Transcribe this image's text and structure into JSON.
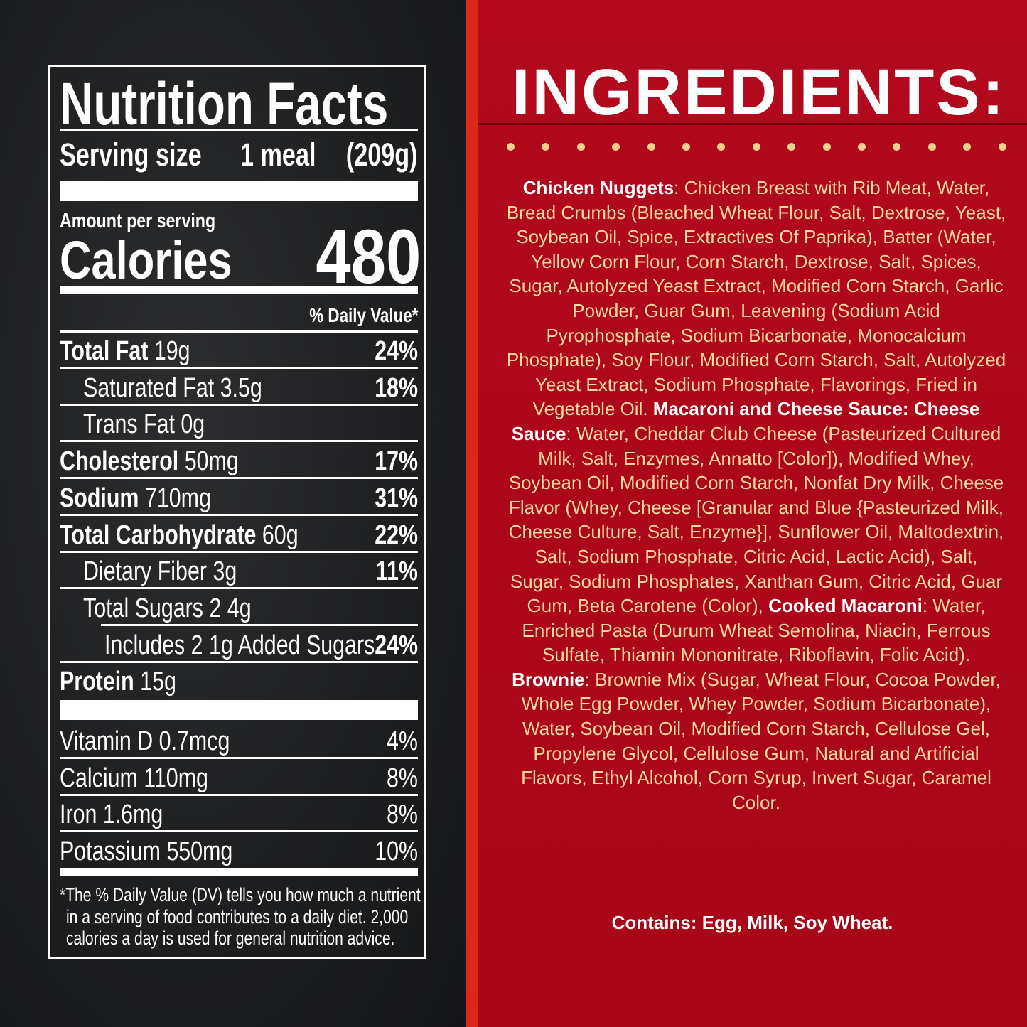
{
  "nutrition": {
    "title": "Nutrition Facts",
    "serving_size_label": "Serving size",
    "serving_size_value": "1 meal",
    "serving_size_grams": "(209g)",
    "amount_per_serving": "Amount per serving",
    "calories_label": "Calories",
    "calories_value": "480",
    "daily_value_header": "% Daily Value*",
    "rows": [
      {
        "label": "Total Fat",
        "amount": "19g",
        "dv": "24%",
        "bold": true,
        "indent": 0
      },
      {
        "label": "Saturated Fat",
        "amount": "3.5g",
        "dv": "18%",
        "bold": false,
        "indent": 1
      },
      {
        "label": "Trans Fat",
        "amount": "0g",
        "dv": "",
        "bold": false,
        "indent": 1
      },
      {
        "label": "Cholesterol",
        "amount": "50mg",
        "dv": "17%",
        "bold": true,
        "indent": 0
      },
      {
        "label": "Sodium",
        "amount": "710mg",
        "dv": "31%",
        "bold": true,
        "indent": 0
      },
      {
        "label": "Total Carbohydrate",
        "amount": "60g",
        "dv": "22%",
        "bold": true,
        "indent": 0
      },
      {
        "label": "Dietary Fiber",
        "amount": "3g",
        "dv": "11%",
        "bold": false,
        "indent": 1
      },
      {
        "label": "Total Sugars",
        "amount": "2 4g",
        "dv": "",
        "bold": false,
        "indent": 1
      },
      {
        "label": "Includes 2 1g Added Sugars",
        "amount": "",
        "dv": "24%",
        "bold": false,
        "indent": 2
      },
      {
        "label": "Protein",
        "amount": "15g",
        "dv": "",
        "bold": true,
        "indent": 0
      }
    ],
    "vitamins": [
      {
        "label": "Vitamin D 0.7mcg",
        "dv": "4%"
      },
      {
        "label": "Calcium 110mg",
        "dv": "8%"
      },
      {
        "label": "Iron 1.6mg",
        "dv": "8%"
      },
      {
        "label": "Potassium 550mg",
        "dv": "10%"
      }
    ],
    "footnote": [
      "*The % Daily Value (DV) tells you how much a nutrient",
      "in a serving of food contributes to a daily diet. 2,000",
      "calories a day is used for general nutrition advice."
    ]
  },
  "ingredients": {
    "title": "INGREDIENTS:",
    "segments": [
      {
        "text": "Chicken Nuggets",
        "bold": true
      },
      {
        "text": ": Chicken Breast with Rib Meat, Water, Bread Crumbs (Bleached Wheat Flour, Salt, Dextrose, Yeast, Soybean Oil, Spice, Extractives Of Paprika), Batter (Water, Yellow Corn Flour, Corn Starch, Dextrose, Salt, Spices, Sugar, Autolyzed Yeast Extract, Modified Corn Starch, Garlic Powder, Guar Gum, Leavening (Sodium Acid Pyrophosphate, Sodium Bicarbonate, Monocalcium Phosphate), Soy Flour, Modified Corn Starch, Salt, Autolyzed Yeast Extract, Sodium Phosphate, Flavorings, Fried in Vegetable Oil. ",
        "bold": false
      },
      {
        "text": "Macaroni and Cheese Sauce: Cheese Sauce",
        "bold": true
      },
      {
        "text": ": Water, Cheddar Club Cheese (Pasteurized Cultured Milk, Salt, Enzymes, Annatto [Color]), Modified Whey, Soybean Oil, Modified Corn Starch, Nonfat Dry Milk, Cheese Flavor (Whey, Cheese [Granular and Blue {Pasteurized Milk, Cheese Culture, Salt, Enzyme}], Sunflower Oil, Maltodextrin, Salt, Sodium Phosphate, Citric Acid, Lactic Acid), Salt, Sugar, Sodium Phosphates, Xanthan Gum, Citric Acid, Guar Gum, Beta Carotene (Color), ",
        "bold": false
      },
      {
        "text": "Cooked Macaroni",
        "bold": true
      },
      {
        "text": ": Water, Enriched Pasta (Durum Wheat Semolina, Niacin, Ferrous Sulfate, Thiamin Mononitrate, Riboflavin, Folic Acid). ",
        "bold": false
      },
      {
        "text": "Brownie",
        "bold": true
      },
      {
        "text": ": Brownie Mix (Sugar, Wheat Flour, Cocoa Powder, Whole Egg Powder, Whey Powder, Sodium Bicarbonate), Water, Soybean Oil, Modified Corn Starch, Cellulose Gel, Propylene Glycol, Cellulose Gum, Natural and Artificial Flavors, Ethyl Alcohol, Corn Syrup, Invert Sugar, Caramel Color.",
        "bold": false
      }
    ],
    "contains": "Contains: Egg, Milk, Soy Wheat."
  },
  "colors": {
    "chalkboard": "#1d1e20",
    "stripe": "#e0261a",
    "red_background": "#ac0719",
    "ingredient_text": "#f5d7a0",
    "dots": "#f3cf8e"
  }
}
